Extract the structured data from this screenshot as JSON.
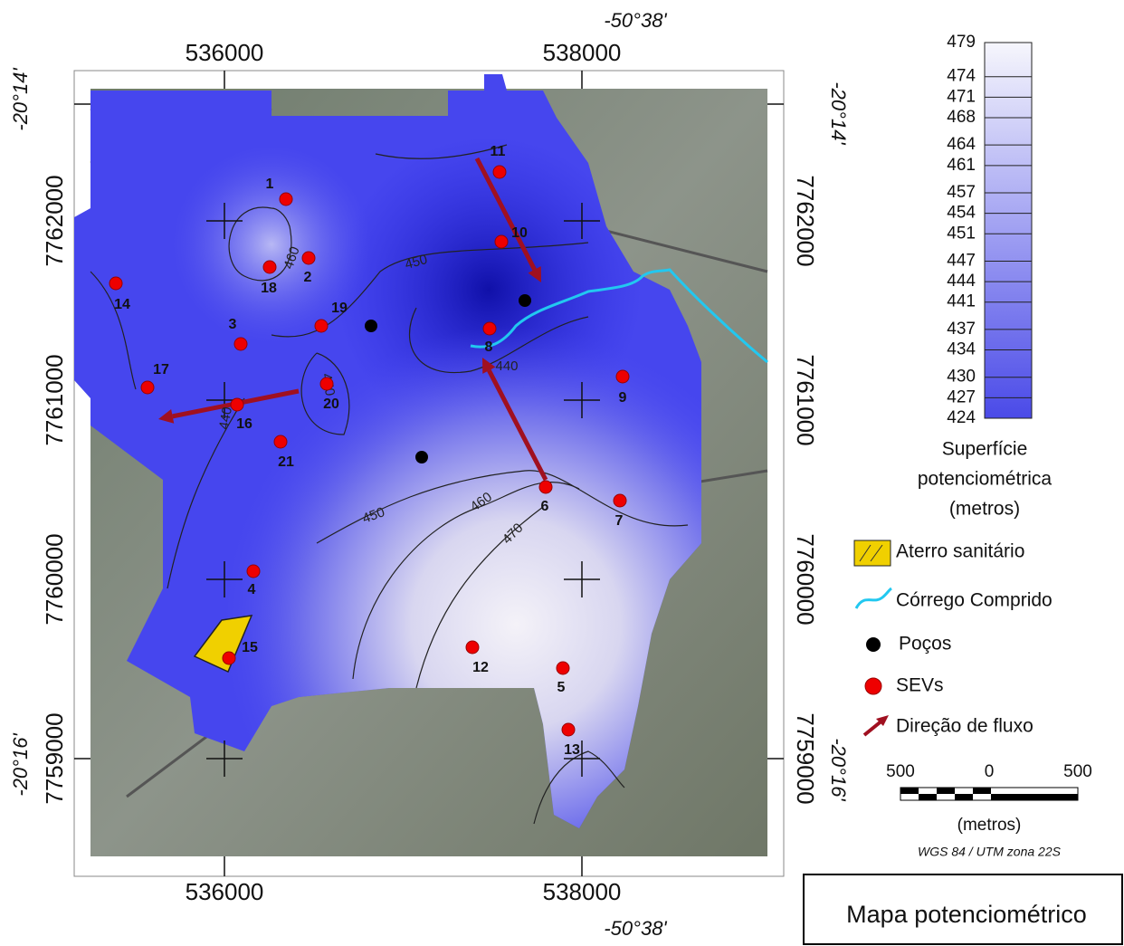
{
  "map": {
    "top_lon": "-50°38'",
    "bottom_lon": "-50°38'",
    "x_labels_top": [
      "536000",
      "538000"
    ],
    "x_labels_bottom": [
      "536000",
      "538000"
    ],
    "y_labels_left": [
      "7762000",
      "7761000",
      "7760000",
      "7759000"
    ],
    "y_labels_right": [
      "7762000",
      "7761000",
      "7760000",
      "7759000"
    ],
    "lat_left": [
      "-20°14'",
      "-20°16'"
    ],
    "lat_right": [
      "-20°14'",
      "-20°16'"
    ],
    "contour_labels": [
      "460",
      "450",
      "440",
      "450",
      "440",
      "450",
      "460",
      "470"
    ],
    "sevs": [
      "1",
      "2",
      "3",
      "4",
      "5",
      "6",
      "7",
      "8",
      "9",
      "10",
      "11",
      "12",
      "13",
      "14",
      "15",
      "16",
      "17",
      "18",
      "19",
      "20",
      "21"
    ]
  },
  "legend": {
    "colorbar_ticks": [
      479,
      474,
      471,
      468,
      464,
      461,
      457,
      454,
      451,
      447,
      444,
      441,
      437,
      434,
      430,
      427,
      424
    ],
    "title_lines": [
      "Superfície",
      "potenciométrica",
      "(metros)"
    ],
    "items": [
      "Aterro sanitário",
      "Córrego Comprido",
      "Poços",
      "SEVs",
      "Direção de fluxo"
    ],
    "scale_labels": [
      "500",
      "0",
      "500"
    ],
    "scale_unit": "(metros)",
    "projection": "WGS 84 / UTM zona 22S"
  },
  "title": "Mapa potenciométrico"
}
